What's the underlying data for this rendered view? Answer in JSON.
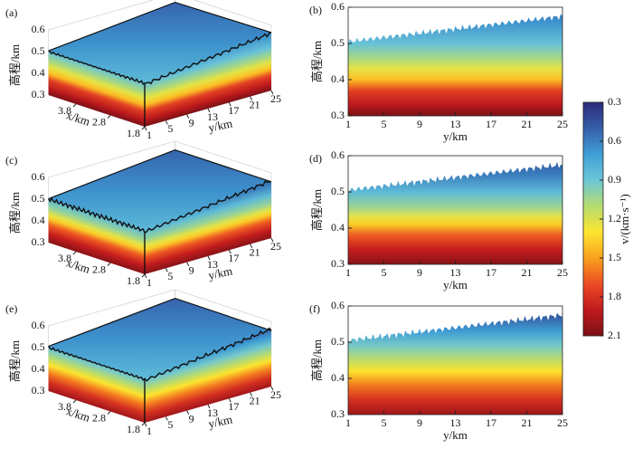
{
  "chart_data": [
    {
      "type": "block3d",
      "label": "(a)",
      "zlabel": "高程/km",
      "zlim": [
        0.3,
        0.6
      ],
      "zticks": [
        0.3,
        0.4,
        0.5,
        0.6
      ],
      "xlabel": "x/km",
      "xlim": [
        1.8,
        4.6
      ],
      "xticks": [
        3.8,
        2.8,
        1.8
      ],
      "ylabel": "y/km",
      "ylim": [
        1,
        25
      ],
      "yticks": [
        1,
        5,
        9,
        13,
        17,
        21,
        25
      ]
    },
    {
      "type": "section",
      "label": "(b)",
      "xlabel": "y/km",
      "xlim": [
        1,
        25
      ],
      "xticks": [
        1,
        5,
        9,
        13,
        17,
        21,
        25
      ],
      "ylabel": "高程/km",
      "ylim": [
        0.3,
        0.6
      ],
      "yticks": [
        0.3,
        0.4,
        0.5,
        0.6
      ]
    },
    {
      "type": "block3d",
      "label": "(c)",
      "zlabel": "高程/km",
      "zlim": [
        0.3,
        0.6
      ],
      "zticks": [
        0.3,
        0.4,
        0.5,
        0.6
      ],
      "xlabel": "x/km",
      "xlim": [
        1.8,
        4.6
      ],
      "xticks": [
        3.8,
        2.8,
        1.8
      ],
      "ylabel": "y/km",
      "ylim": [
        1,
        25
      ],
      "yticks": [
        1,
        5,
        9,
        13,
        17,
        21,
        25
      ]
    },
    {
      "type": "section",
      "label": "(d)",
      "xlabel": "y/km",
      "xlim": [
        1,
        25
      ],
      "xticks": [
        1,
        5,
        9,
        13,
        17,
        21,
        25
      ],
      "ylabel": "高程/km",
      "ylim": [
        0.3,
        0.6
      ],
      "yticks": [
        0.3,
        0.4,
        0.5,
        0.6
      ]
    },
    {
      "type": "block3d",
      "label": "(e)",
      "zlabel": "高程/km",
      "zlim": [
        0.3,
        0.6
      ],
      "zticks": [
        0.3,
        0.4,
        0.5,
        0.6
      ],
      "xlabel": "x/km",
      "xlim": [
        1.8,
        4.6
      ],
      "xticks": [
        3.8,
        2.8,
        1.8
      ],
      "ylabel": "y/km",
      "ylim": [
        1,
        25
      ],
      "yticks": [
        1,
        5,
        9,
        13,
        17,
        21,
        25
      ]
    },
    {
      "type": "section",
      "label": "(f)",
      "xlabel": "y/km",
      "xlim": [
        1,
        25
      ],
      "xticks": [
        1,
        5,
        9,
        13,
        17,
        21,
        25
      ],
      "ylabel": "高程/km",
      "ylim": [
        0.3,
        0.6
      ],
      "yticks": [
        0.3,
        0.4,
        0.5,
        0.6
      ]
    }
  ],
  "colorbar": {
    "label": "v/(km·s⁻¹)",
    "lim": [
      0.3,
      2.1
    ],
    "ticks": [
      0.3,
      0.6,
      0.9,
      1.2,
      1.5,
      1.8,
      2.1
    ],
    "colors": [
      "#2d2a7b",
      "#355fa8",
      "#3f9fd6",
      "#6cc6d8",
      "#b5dc6e",
      "#fde630",
      "#f9a11b",
      "#ec4b24",
      "#c0191e",
      "#7a1216"
    ]
  }
}
